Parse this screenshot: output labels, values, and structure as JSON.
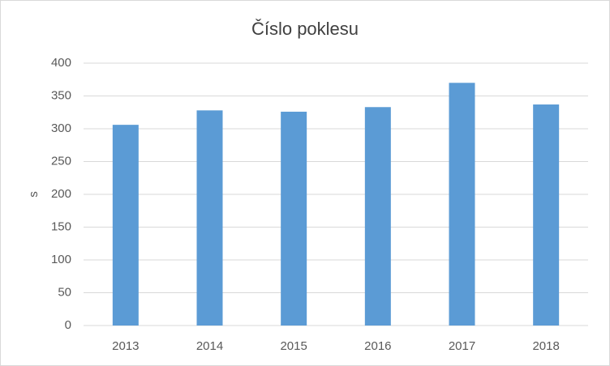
{
  "chart_data": {
    "type": "bar",
    "title": "Číslo poklesu",
    "y_label": "s",
    "categories": [
      "2013",
      "2014",
      "2015",
      "2016",
      "2017",
      "2018"
    ],
    "values": [
      306,
      328,
      326,
      333,
      370,
      337
    ],
    "color": "#5b9bd5",
    "ylim": [
      0,
      400
    ],
    "yticks": [
      0,
      50,
      100,
      150,
      200,
      250,
      300,
      350,
      400
    ],
    "grid": true
  }
}
